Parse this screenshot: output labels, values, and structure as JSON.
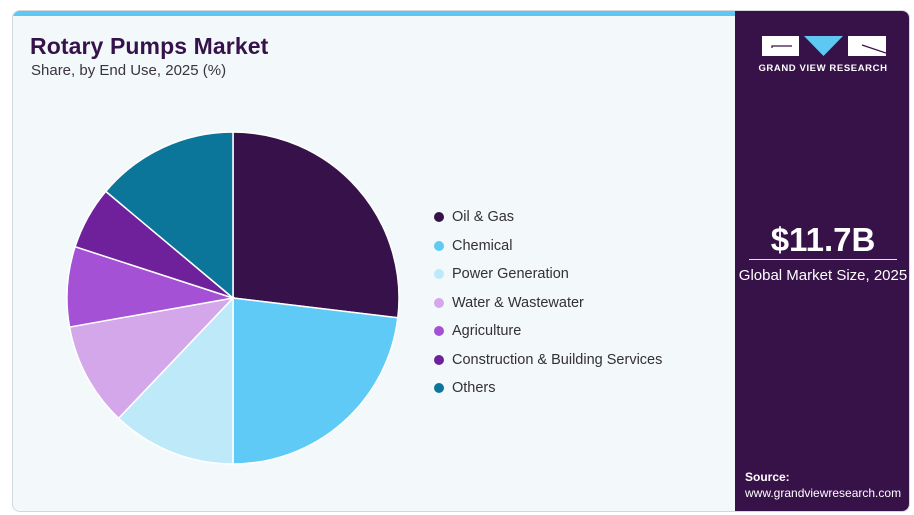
{
  "header": {
    "title": "Rotary Pumps Market",
    "subtitle": "Share, by End Use, 2025 (%)"
  },
  "brand": {
    "logo_icon": "gvr-logo-icon",
    "name": "GRAND VIEW RESEARCH",
    "panel_color": "#371248",
    "accent_color": "#5ec8f2"
  },
  "market": {
    "value": "$11.7B",
    "label": "Global Market Size, 2025"
  },
  "source": {
    "label": "Source:",
    "url": "www.grandviewresearch.com"
  },
  "chart_data": {
    "type": "pie",
    "title": "Rotary Pumps Market",
    "subtitle": "Share, by End Use, 2025 (%)",
    "legend_position": "right",
    "start_angle": "12 o'clock",
    "direction": "clockwise",
    "categories": [
      "Oil & Gas",
      "Chemical",
      "Power Generation",
      "Water & Wastewater",
      "Agriculture",
      "Construction & Building Services",
      "Others"
    ],
    "values": [
      26.9,
      23.1,
      12.1,
      10.1,
      7.8,
      6.1,
      13.9
    ],
    "colors": [
      "#37124a",
      "#5ecaf5",
      "#bde9f8",
      "#d4a7ea",
      "#a451d5",
      "#6f219c",
      "#0b7699"
    ],
    "unit": "%"
  }
}
